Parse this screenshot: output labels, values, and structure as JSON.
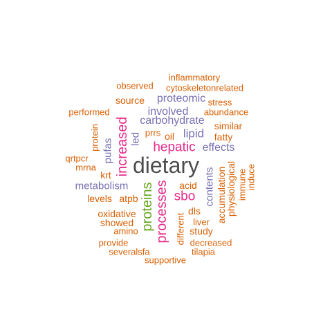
{
  "colors": {
    "gray": "#4d4d4d",
    "orange": "#d95f02",
    "purple": "#7570b3",
    "magenta": "#e7298a",
    "green": "#66a61e"
  },
  "words": [
    "dietary",
    "increased",
    "processes",
    "proteins",
    "hepatic",
    "sbo",
    "involved",
    "proteomic",
    "carbohydrate",
    "lipid",
    "effects",
    "metabolism",
    "pufas",
    "contents",
    "led",
    "inflammatory",
    "cytoskeletonrelated",
    "observed",
    "source",
    "stress",
    "performed",
    "abundance",
    "similar",
    "prrs",
    "oil",
    "fatty",
    "protein",
    "qrtpcr",
    "mrna",
    "krt",
    "acid",
    "accumulation",
    "physiological",
    "immune",
    "induce",
    "levels",
    "atpb",
    "oxidative",
    "showed",
    "amino",
    "dls",
    "liver",
    "different",
    "study",
    "provide",
    "decreased",
    "severalsfa",
    "tilapia",
    "supportive"
  ]
}
